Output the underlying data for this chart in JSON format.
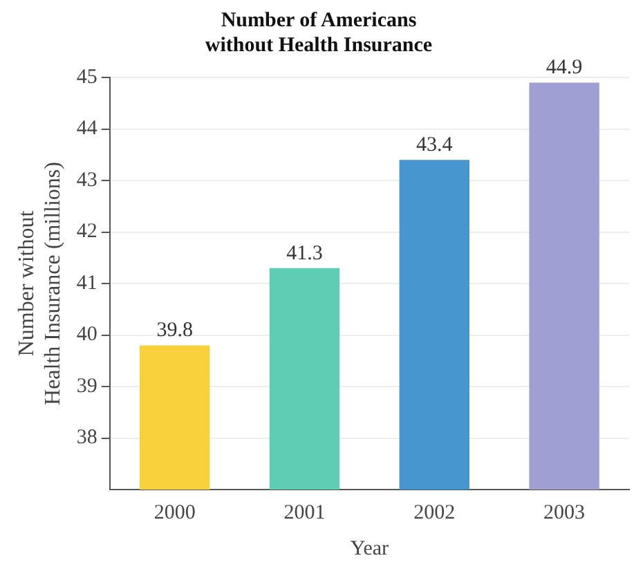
{
  "chart_data": {
    "type": "bar",
    "title": "Number of Americans\nwithout Health Insurance",
    "xlabel": "Year",
    "ylabel": "Number without\nHealth Insurance (millions)",
    "categories": [
      "2000",
      "2001",
      "2002",
      "2003"
    ],
    "values": [
      39.8,
      41.3,
      43.4,
      44.9
    ],
    "colors": [
      "#f8d23c",
      "#5ecdb3",
      "#4896cf",
      "#a09fd3"
    ],
    "ylim": [
      37,
      45
    ],
    "yticks": [
      38,
      39,
      40,
      41,
      42,
      43,
      44,
      45
    ],
    "grid": "y",
    "data_labels": true
  }
}
